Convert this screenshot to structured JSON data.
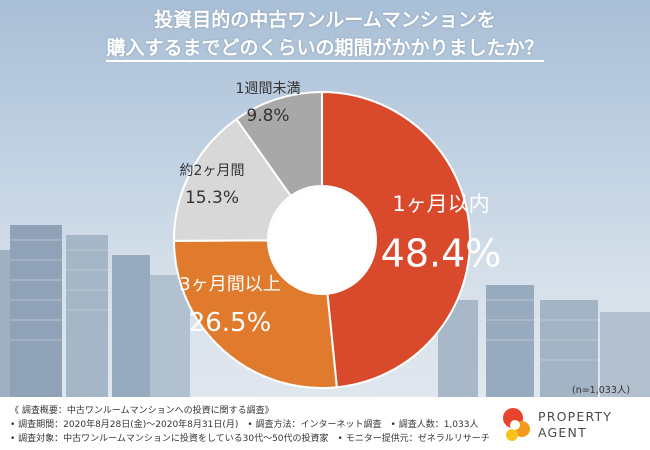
{
  "title": {
    "line1": "投資目的の中古ワンルームマンションを",
    "line2": "購入するまでどのくらいの期間がかかりましたか？"
  },
  "chart_data": {
    "type": "pie",
    "style": "donut",
    "start": "top",
    "direction": "clockwise",
    "slices": [
      {
        "label": "1ヶ月以内",
        "value": 48.4,
        "value_text": "48.4%",
        "color": "#d94a2c",
        "label_color": "#ffffff"
      },
      {
        "label": "3ヶ月間以上",
        "value": 26.5,
        "value_text": "26.5%",
        "color": "#e07a2c",
        "label_color": "#ffffff"
      },
      {
        "label": "約2ヶ月間",
        "value": 15.3,
        "value_text": "15.3%",
        "color": "#d8d8d8",
        "label_color": "#333333"
      },
      {
        "label": "1週間未満",
        "value": 9.8,
        "value_text": "9.8%",
        "color": "#a8a8a8",
        "label_color": "#333333"
      }
    ],
    "sample_note": "(n=1,033人)"
  },
  "footer": {
    "heading": "《 調査概要：中古ワンルームマンションへの投資に関する調査》",
    "period": "• 調査期間：2020年8月28日(金)〜2020年8月31日(月)　• 調査方法：インターネット調査　• 調査人数：1,033人",
    "target": "• 調査対象：中古ワンルームマンションに投資をしている30代〜50代の投資家　• モニター提供元：ゼネラルリサーチ"
  },
  "logo": {
    "line1": "PROPERTY",
    "line2": "AGENT",
    "colors": [
      "#e8432d",
      "#f39a1e",
      "#f6c21c"
    ]
  }
}
